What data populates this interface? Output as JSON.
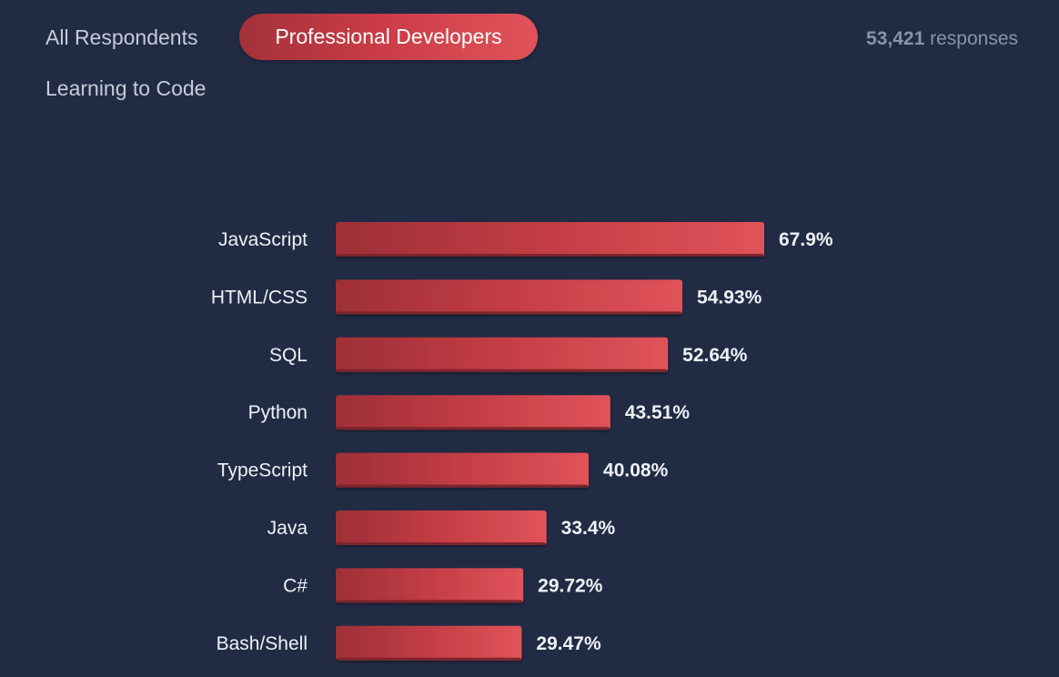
{
  "tabs": {
    "all_respondents": "All Respondents",
    "professional_developers": "Professional Developers",
    "learning_to_code": "Learning to Code",
    "active": "professional_developers"
  },
  "responses": {
    "count": "53,421",
    "label": "responses"
  },
  "colors": {
    "background": "#212b44",
    "bar_start": "#9e2f37",
    "bar_end": "#e0535a",
    "text": "#eef1f6",
    "muted": "#8a93a6"
  },
  "chart_data": {
    "type": "bar",
    "orientation": "horizontal",
    "title": "",
    "xlabel": "",
    "ylabel": "",
    "categories": [
      "JavaScript",
      "HTML/CSS",
      "SQL",
      "Python",
      "TypeScript",
      "Java",
      "C#",
      "Bash/Shell"
    ],
    "values": [
      67.9,
      54.93,
      52.64,
      43.51,
      40.08,
      33.4,
      29.72,
      29.47
    ],
    "value_labels": [
      "67.9%",
      "54.93%",
      "52.64%",
      "43.51%",
      "40.08%",
      "33.4%",
      "29.72%",
      "29.47%"
    ],
    "unit": "%",
    "xlim": [
      0,
      67.9
    ],
    "grid": false
  }
}
